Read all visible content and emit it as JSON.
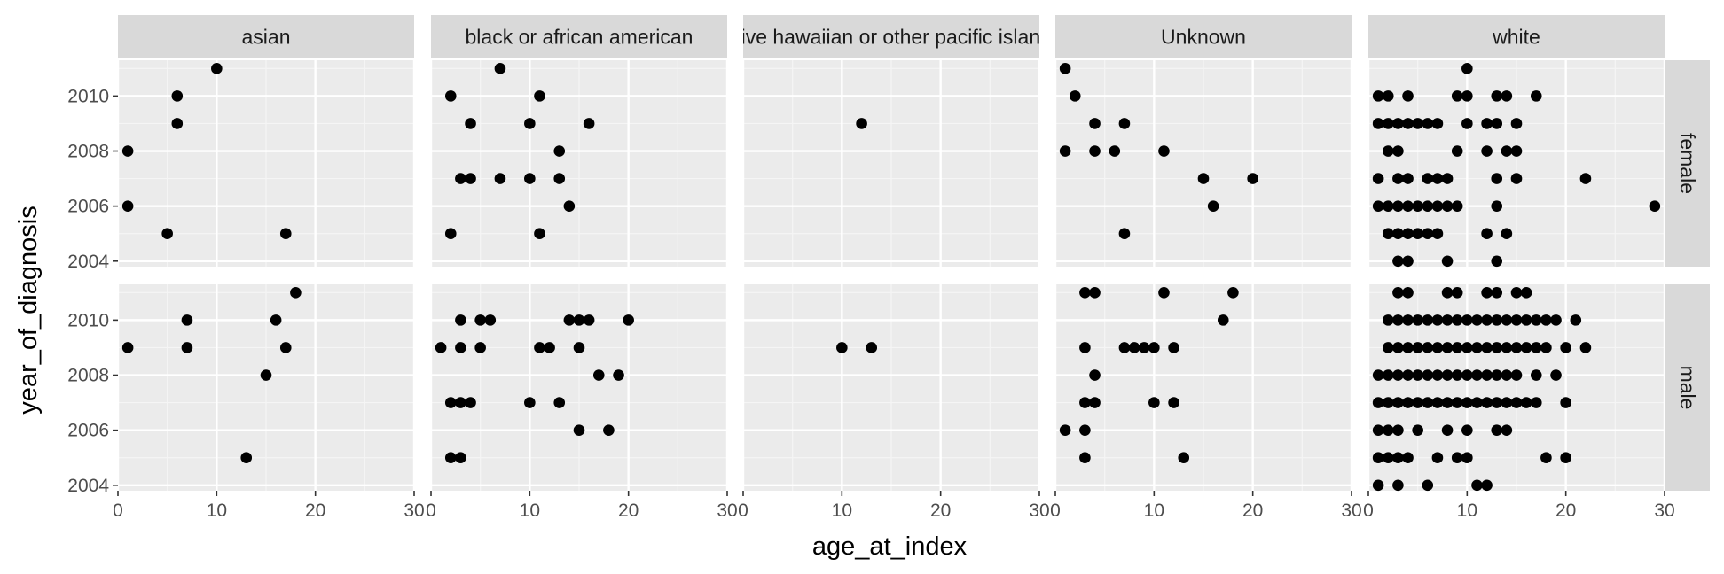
{
  "chart_data": {
    "type": "scatter",
    "xlabel": "age_at_index",
    "ylabel": "year_of_diagnosis",
    "xlim": [
      0,
      30
    ],
    "ylim": [
      2003.8,
      2011.3
    ],
    "x_ticks": [
      0,
      10,
      20,
      30
    ],
    "x_tick_labels": [
      "0",
      "10",
      "20",
      "30"
    ],
    "y_ticks": [
      2004,
      2006,
      2008,
      2010
    ],
    "y_tick_labels": [
      "2004",
      "2006",
      "2008",
      "2010"
    ],
    "grid": true,
    "legend": "none",
    "columns": [
      "asian",
      "black or african american",
      "native hawaiian or other pacific islander",
      "Unknown",
      "white"
    ],
    "rows": [
      "female",
      "male"
    ],
    "point_color": "#000000",
    "panel_background": "#ebebeb",
    "strip_background": "#d9d9d9",
    "panels": [
      {
        "column": "asian",
        "row": "female",
        "points": [
          [
            1,
            2008
          ],
          [
            1,
            2006
          ],
          [
            5,
            2005
          ],
          [
            6,
            2010
          ],
          [
            6,
            2009
          ],
          [
            10,
            2011
          ],
          [
            17,
            2005
          ]
        ]
      },
      {
        "column": "black or african american",
        "row": "female",
        "points": [
          [
            2,
            2010
          ],
          [
            2,
            2005
          ],
          [
            3,
            2007
          ],
          [
            4,
            2009
          ],
          [
            4,
            2007
          ],
          [
            7,
            2011
          ],
          [
            7,
            2007
          ],
          [
            10,
            2009
          ],
          [
            10,
            2007
          ],
          [
            11,
            2010
          ],
          [
            11,
            2005
          ],
          [
            13,
            2008
          ],
          [
            13,
            2007
          ],
          [
            14,
            2006
          ],
          [
            16,
            2009
          ]
        ]
      },
      {
        "column": "native hawaiian or other pacific islander",
        "row": "female",
        "points": [
          [
            12,
            2009
          ]
        ]
      },
      {
        "column": "Unknown",
        "row": "female",
        "points": [
          [
            1,
            2011
          ],
          [
            1,
            2008
          ],
          [
            2,
            2010
          ],
          [
            4,
            2009
          ],
          [
            4,
            2008
          ],
          [
            6,
            2008
          ],
          [
            7,
            2009
          ],
          [
            7,
            2005
          ],
          [
            11,
            2008
          ],
          [
            15,
            2007
          ],
          [
            16,
            2006
          ],
          [
            20,
            2007
          ]
        ]
      },
      {
        "column": "white",
        "row": "female",
        "points": [
          [
            1,
            2010
          ],
          [
            1,
            2009
          ],
          [
            1,
            2007
          ],
          [
            1,
            2006
          ],
          [
            2,
            2010
          ],
          [
            2,
            2009
          ],
          [
            2,
            2008
          ],
          [
            2,
            2006
          ],
          [
            2,
            2005
          ],
          [
            3,
            2009
          ],
          [
            3,
            2008
          ],
          [
            3,
            2007
          ],
          [
            3,
            2006
          ],
          [
            3,
            2005
          ],
          [
            3,
            2004
          ],
          [
            4,
            2010
          ],
          [
            4,
            2009
          ],
          [
            4,
            2007
          ],
          [
            4,
            2006
          ],
          [
            4,
            2005
          ],
          [
            4,
            2004
          ],
          [
            5,
            2009
          ],
          [
            5,
            2006
          ],
          [
            5,
            2005
          ],
          [
            6,
            2009
          ],
          [
            6,
            2007
          ],
          [
            6,
            2006
          ],
          [
            6,
            2005
          ],
          [
            7,
            2009
          ],
          [
            7,
            2007
          ],
          [
            7,
            2006
          ],
          [
            7,
            2005
          ],
          [
            8,
            2007
          ],
          [
            8,
            2006
          ],
          [
            8,
            2004
          ],
          [
            9,
            2010
          ],
          [
            9,
            2008
          ],
          [
            9,
            2006
          ],
          [
            10,
            2011
          ],
          [
            10,
            2010
          ],
          [
            10,
            2009
          ],
          [
            12,
            2009
          ],
          [
            12,
            2008
          ],
          [
            12,
            2005
          ],
          [
            13,
            2010
          ],
          [
            13,
            2009
          ],
          [
            13,
            2007
          ],
          [
            13,
            2006
          ],
          [
            13,
            2004
          ],
          [
            14,
            2010
          ],
          [
            14,
            2008
          ],
          [
            14,
            2005
          ],
          [
            15,
            2009
          ],
          [
            15,
            2008
          ],
          [
            15,
            2007
          ],
          [
            17,
            2010
          ],
          [
            22,
            2007
          ],
          [
            29,
            2006
          ]
        ]
      },
      {
        "column": "asian",
        "row": "male",
        "points": [
          [
            1,
            2009
          ],
          [
            7,
            2010
          ],
          [
            7,
            2009
          ],
          [
            13,
            2005
          ],
          [
            15,
            2008
          ],
          [
            16,
            2010
          ],
          [
            17,
            2009
          ],
          [
            18,
            2011
          ]
        ]
      },
      {
        "column": "black or african american",
        "row": "male",
        "points": [
          [
            1,
            2009
          ],
          [
            2,
            2007
          ],
          [
            2,
            2005
          ],
          [
            3,
            2010
          ],
          [
            3,
            2009
          ],
          [
            3,
            2007
          ],
          [
            3,
            2005
          ],
          [
            4,
            2007
          ],
          [
            5,
            2010
          ],
          [
            5,
            2009
          ],
          [
            6,
            2010
          ],
          [
            10,
            2007
          ],
          [
            11,
            2009
          ],
          [
            12,
            2009
          ],
          [
            13,
            2007
          ],
          [
            14,
            2010
          ],
          [
            15,
            2010
          ],
          [
            15,
            2009
          ],
          [
            15,
            2006
          ],
          [
            16,
            2010
          ],
          [
            17,
            2008
          ],
          [
            18,
            2006
          ],
          [
            19,
            2008
          ],
          [
            20,
            2010
          ]
        ]
      },
      {
        "column": "native hawaiian or other pacific islander",
        "row": "male",
        "points": [
          [
            10,
            2009
          ],
          [
            13,
            2009
          ]
        ]
      },
      {
        "column": "Unknown",
        "row": "male",
        "points": [
          [
            1,
            2006
          ],
          [
            3,
            2011
          ],
          [
            3,
            2009
          ],
          [
            3,
            2007
          ],
          [
            3,
            2006
          ],
          [
            3,
            2005
          ],
          [
            4,
            2011
          ],
          [
            4,
            2008
          ],
          [
            4,
            2007
          ],
          [
            7,
            2009
          ],
          [
            8,
            2009
          ],
          [
            9,
            2009
          ],
          [
            10,
            2009
          ],
          [
            10,
            2007
          ],
          [
            11,
            2011
          ],
          [
            12,
            2009
          ],
          [
            12,
            2007
          ],
          [
            13,
            2005
          ],
          [
            17,
            2010
          ],
          [
            18,
            2011
          ]
        ]
      },
      {
        "column": "white",
        "row": "male",
        "points": [
          [
            1,
            2008
          ],
          [
            1,
            2007
          ],
          [
            1,
            2006
          ],
          [
            1,
            2005
          ],
          [
            1,
            2004
          ],
          [
            2,
            2010
          ],
          [
            2,
            2009
          ],
          [
            2,
            2008
          ],
          [
            2,
            2007
          ],
          [
            2,
            2006
          ],
          [
            2,
            2005
          ],
          [
            3,
            2011
          ],
          [
            3,
            2010
          ],
          [
            3,
            2009
          ],
          [
            3,
            2008
          ],
          [
            3,
            2007
          ],
          [
            3,
            2006
          ],
          [
            3,
            2005
          ],
          [
            3,
            2004
          ],
          [
            4,
            2011
          ],
          [
            4,
            2010
          ],
          [
            4,
            2009
          ],
          [
            4,
            2008
          ],
          [
            4,
            2007
          ],
          [
            4,
            2005
          ],
          [
            5,
            2010
          ],
          [
            5,
            2009
          ],
          [
            5,
            2008
          ],
          [
            5,
            2007
          ],
          [
            5,
            2006
          ],
          [
            6,
            2010
          ],
          [
            6,
            2009
          ],
          [
            6,
            2008
          ],
          [
            6,
            2007
          ],
          [
            6,
            2004
          ],
          [
            7,
            2010
          ],
          [
            7,
            2009
          ],
          [
            7,
            2008
          ],
          [
            7,
            2007
          ],
          [
            7,
            2005
          ],
          [
            8,
            2011
          ],
          [
            8,
            2010
          ],
          [
            8,
            2009
          ],
          [
            8,
            2008
          ],
          [
            8,
            2007
          ],
          [
            8,
            2006
          ],
          [
            9,
            2011
          ],
          [
            9,
            2010
          ],
          [
            9,
            2009
          ],
          [
            9,
            2008
          ],
          [
            9,
            2007
          ],
          [
            9,
            2005
          ],
          [
            10,
            2010
          ],
          [
            10,
            2009
          ],
          [
            10,
            2008
          ],
          [
            10,
            2007
          ],
          [
            10,
            2006
          ],
          [
            10,
            2005
          ],
          [
            11,
            2010
          ],
          [
            11,
            2009
          ],
          [
            11,
            2008
          ],
          [
            11,
            2007
          ],
          [
            11,
            2004
          ],
          [
            12,
            2011
          ],
          [
            12,
            2010
          ],
          [
            12,
            2009
          ],
          [
            12,
            2008
          ],
          [
            12,
            2007
          ],
          [
            12,
            2004
          ],
          [
            13,
            2011
          ],
          [
            13,
            2010
          ],
          [
            13,
            2009
          ],
          [
            13,
            2008
          ],
          [
            13,
            2007
          ],
          [
            13,
            2006
          ],
          [
            14,
            2010
          ],
          [
            14,
            2009
          ],
          [
            14,
            2008
          ],
          [
            14,
            2007
          ],
          [
            14,
            2006
          ],
          [
            15,
            2011
          ],
          [
            15,
            2010
          ],
          [
            15,
            2009
          ],
          [
            15,
            2008
          ],
          [
            15,
            2007
          ],
          [
            16,
            2011
          ],
          [
            16,
            2010
          ],
          [
            16,
            2009
          ],
          [
            16,
            2007
          ],
          [
            17,
            2010
          ],
          [
            17,
            2009
          ],
          [
            17,
            2008
          ],
          [
            17,
            2007
          ],
          [
            18,
            2010
          ],
          [
            18,
            2009
          ],
          [
            18,
            2005
          ],
          [
            19,
            2010
          ],
          [
            19,
            2008
          ],
          [
            20,
            2009
          ],
          [
            20,
            2007
          ],
          [
            20,
            2005
          ],
          [
            21,
            2010
          ],
          [
            22,
            2009
          ]
        ]
      }
    ]
  }
}
